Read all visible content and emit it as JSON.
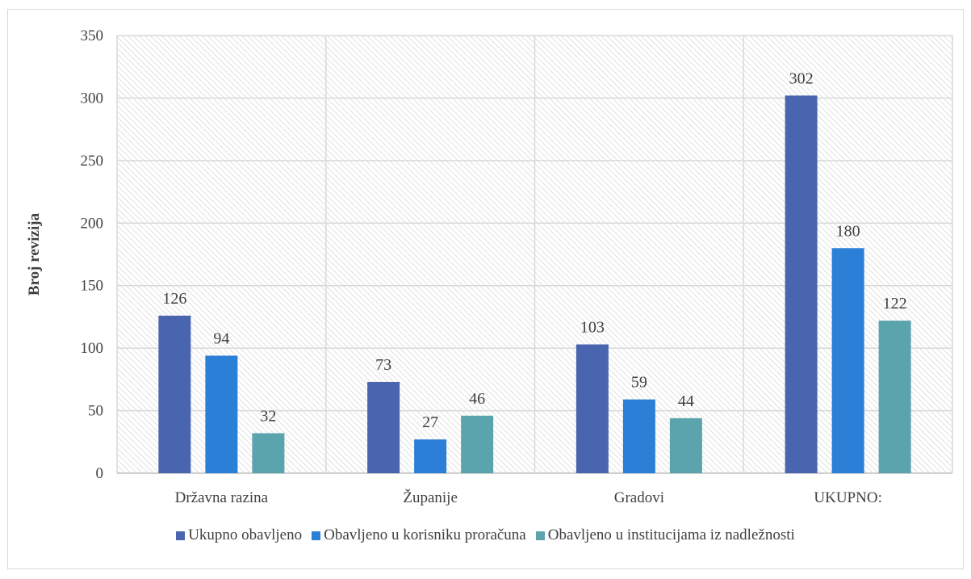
{
  "chart_data": {
    "type": "bar",
    "title": "",
    "ylabel": "Broj revizija",
    "xlabel": "",
    "ylim": [
      0,
      350
    ],
    "yticks": [
      0,
      50,
      100,
      150,
      200,
      250,
      300,
      350
    ],
    "categories": [
      "Državna razina",
      "Županije",
      "Gradovi",
      "UKUPNO:"
    ],
    "series": [
      {
        "name": "Ukupno obavljeno",
        "color": "#4a65b0",
        "values": [
          126,
          73,
          103,
          302
        ]
      },
      {
        "name": "Obavljeno u korisniku proračuna",
        "color": "#2b7fd6",
        "values": [
          94,
          27,
          59,
          180
        ]
      },
      {
        "name": "Obavljeno u institucijama iz nadležnosti",
        "color": "#5ba3ad",
        "values": [
          32,
          46,
          44,
          122
        ]
      }
    ],
    "grid": true,
    "legend": "bottom",
    "plot_background": "diagonal hatch pattern"
  }
}
